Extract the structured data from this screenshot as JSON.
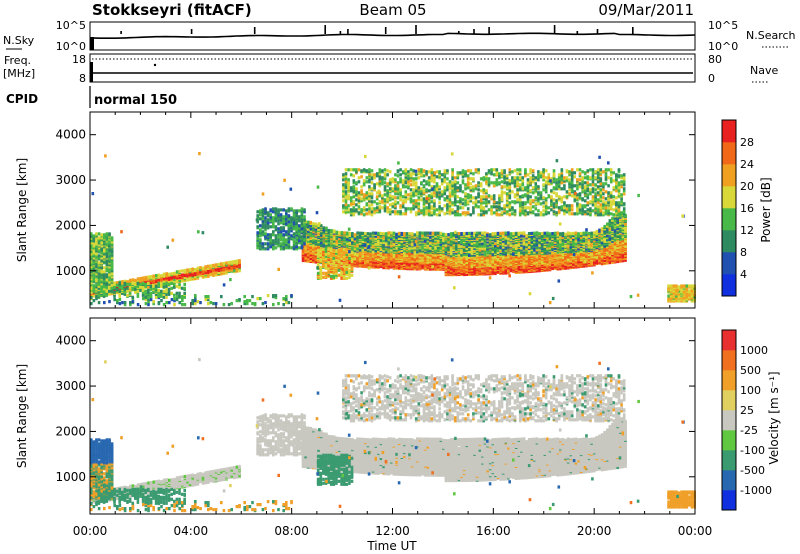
{
  "header": {
    "station": "Stokkseyri (fitACF)",
    "beam": "Beam 05",
    "date": "09/Mar/2011"
  },
  "meta_panels": {
    "nsky_label": "N.Sky",
    "nsky_ticks": [
      "10^5",
      "10^0"
    ],
    "nsearch_label": "N.Search",
    "nsearch_ticks": [
      "10^5",
      "10^0"
    ],
    "freq_label_1": "Freq.",
    "freq_label_2": "[MHz]",
    "freq_ticks": [
      "18",
      "8"
    ],
    "nave_label": "Nave",
    "nave_ticks": [
      "80",
      "0"
    ],
    "cpid_label": "CPID",
    "cpid_value": "normal 150"
  },
  "x_axis": {
    "label": "Time UT",
    "ticks": [
      "00:00",
      "04:00",
      "08:00",
      "12:00",
      "16:00",
      "20:00",
      "00:00"
    ]
  },
  "colors": {
    "power_scale": [
      "#1030e0",
      "#2050b0",
      "#2e8a60",
      "#48b848",
      "#d8d838",
      "#f0a020",
      "#f06818",
      "#e82020"
    ],
    "velocity_scale": [
      "#1030e0",
      "#2868b0",
      "#3a9a70",
      "#60c840",
      "#c8c8c0",
      "#e0d060",
      "#f0a028",
      "#f07020",
      "#e83030"
    ]
  },
  "chart_data": [
    {
      "type": "heatmap",
      "xlabel": "",
      "ylabel": "Slant Range [km]",
      "xlim": [
        0,
        24
      ],
      "ylim": [
        180,
        4500
      ],
      "yticks": [
        "1000",
        "2000",
        "3000",
        "4000"
      ],
      "colorbar": {
        "label": "Power [dB]",
        "ticks": [
          "4",
          "8",
          "12",
          "16",
          "20",
          "24",
          "28"
        ],
        "range": [
          0,
          30
        ]
      },
      "regions": [
        {
          "name": "near-range band",
          "x": [
            0,
            6
          ],
          "range_km": [
            400,
            1000
          ],
          "power_db": 22
        },
        {
          "name": "early echoes",
          "x": [
            0,
            0.8
          ],
          "range_km": [
            500,
            1800
          ],
          "power_db": 14
        },
        {
          "name": "main scatter band",
          "x": [
            8.5,
            21.2
          ],
          "range_km": [
            900,
            2200
          ],
          "power_db": 24
        },
        {
          "name": "upper scatter",
          "x": [
            11,
            21
          ],
          "range_km": [
            2300,
            3200
          ],
          "power_db": 12
        },
        {
          "name": "late echoes",
          "x": [
            23,
            24
          ],
          "range_km": [
            300,
            700
          ],
          "power_db": 18
        }
      ]
    },
    {
      "type": "heatmap",
      "xlabel": "Time UT",
      "ylabel": "Slant Range [km]",
      "xlim": [
        0,
        24
      ],
      "ylim": [
        180,
        4500
      ],
      "yticks": [
        "1000",
        "2000",
        "3000",
        "4000"
      ],
      "colorbar": {
        "label": "Velocity [m s⁻¹]",
        "ticks": [
          "1000",
          "500",
          "100",
          "25",
          "-25",
          "-100",
          "-500",
          "-1000"
        ],
        "range": [
          -1000,
          1000
        ]
      },
      "regions": [
        {
          "name": "near-range band",
          "x": [
            0,
            6
          ],
          "range_km": [
            400,
            1000
          ],
          "velocity_ms": 0
        },
        {
          "name": "early echoes",
          "x": [
            0,
            0.8
          ],
          "range_km": [
            500,
            1800
          ],
          "velocity_ms": 500
        },
        {
          "name": "main scatter band",
          "x": [
            8.5,
            21.2
          ],
          "range_km": [
            900,
            2200
          ],
          "velocity_ms": 0
        },
        {
          "name": "green patch",
          "x": [
            9,
            10.5
          ],
          "range_km": [
            800,
            1600
          ],
          "velocity_ms": 100
        },
        {
          "name": "late echoes",
          "x": [
            23,
            24
          ],
          "range_km": [
            300,
            700
          ],
          "velocity_ms": -400
        }
      ]
    }
  ]
}
